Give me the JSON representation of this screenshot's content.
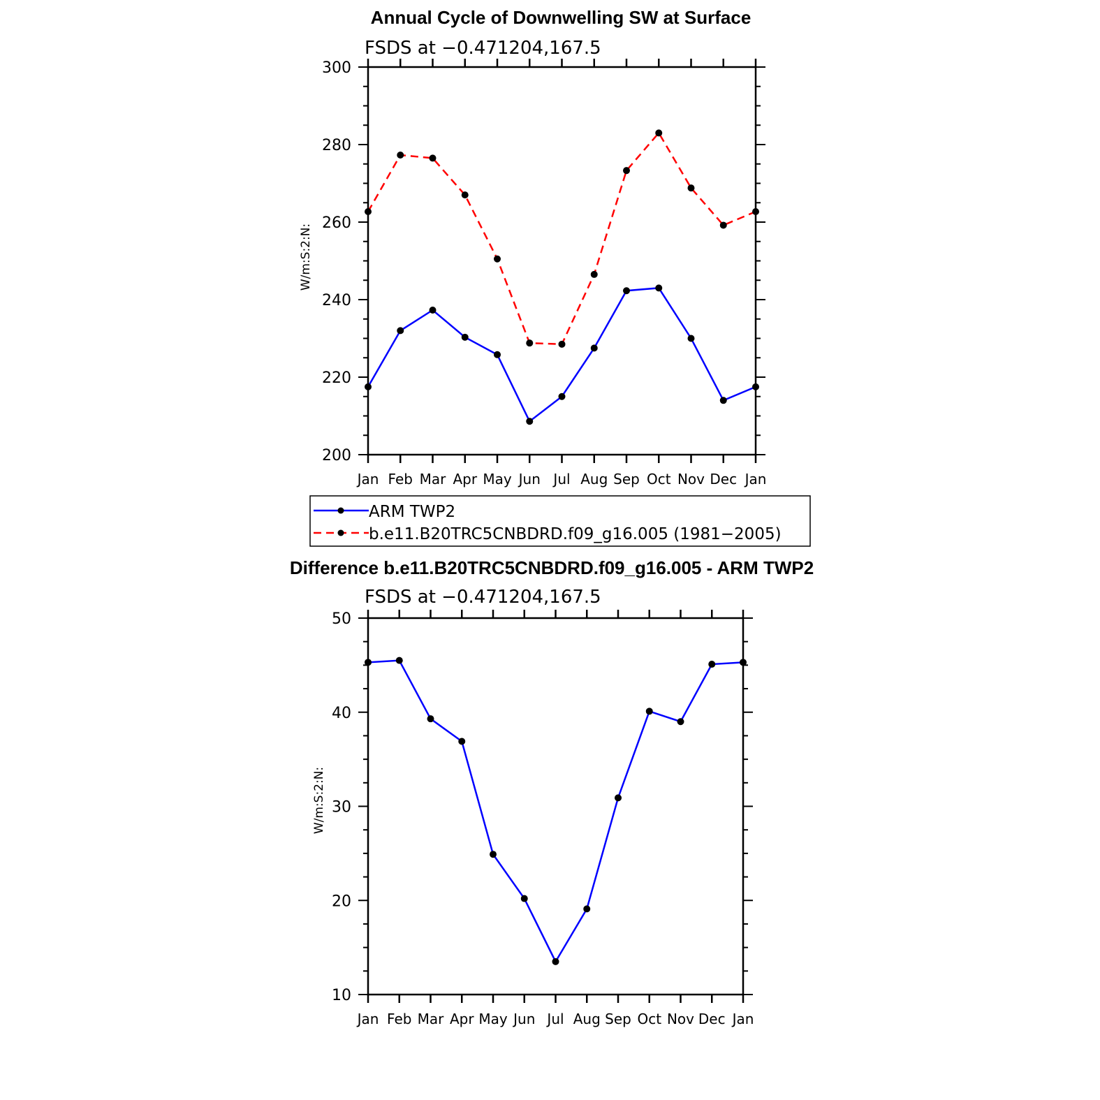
{
  "chart_data": [
    {
      "type": "line",
      "title": "Annual Cycle of Downwelling SW at Surface",
      "subtitle": "FSDS at −0.471204,167.5",
      "xlabel": "",
      "ylabel": "W/m:S:2:N:",
      "categories": [
        "Jan",
        "Feb",
        "Mar",
        "Apr",
        "May",
        "Jun",
        "Jul",
        "Aug",
        "Sep",
        "Oct",
        "Nov",
        "Dec",
        "Jan"
      ],
      "ylim": [
        200,
        300
      ],
      "yticks": [
        200,
        220,
        240,
        260,
        280,
        300
      ],
      "series": [
        {
          "name": "ARM TWP2",
          "color": "#0000ff",
          "dash": "solid",
          "values": [
            217.5,
            232,
            237.3,
            230.3,
            225.8,
            208.6,
            215,
            227.5,
            242.3,
            243,
            230,
            214,
            217.5
          ]
        },
        {
          "name": "b.e11.B20TRC5CNBDRD.f09_g16.005 (1981−2005)",
          "color": "#ff0000",
          "dash": "dashed",
          "values": [
            262.7,
            277.3,
            276.5,
            267,
            250.5,
            228.8,
            228.5,
            246.5,
            273.3,
            283,
            268.8,
            259.2,
            262.7
          ]
        }
      ],
      "legend": "bottom"
    },
    {
      "type": "line",
      "title": "Difference b.e11.B20TRC5CNBDRD.f09_g16.005 - ARM TWP2",
      "subtitle": "FSDS at −0.471204,167.5",
      "xlabel": "",
      "ylabel": "W/m:S:2:N:",
      "categories": [
        "Jan",
        "Feb",
        "Mar",
        "Apr",
        "May",
        "Jun",
        "Jul",
        "Aug",
        "Sep",
        "Oct",
        "Nov",
        "Dec",
        "Jan"
      ],
      "ylim": [
        10,
        50
      ],
      "yticks": [
        10,
        20,
        30,
        40,
        50
      ],
      "series": [
        {
          "color": "#0000ff",
          "dash": "solid",
          "values": [
            45.3,
            45.5,
            39.3,
            36.9,
            24.9,
            20.2,
            13.5,
            19.1,
            30.9,
            40.1,
            39,
            45.1,
            45.3
          ]
        }
      ]
    }
  ]
}
